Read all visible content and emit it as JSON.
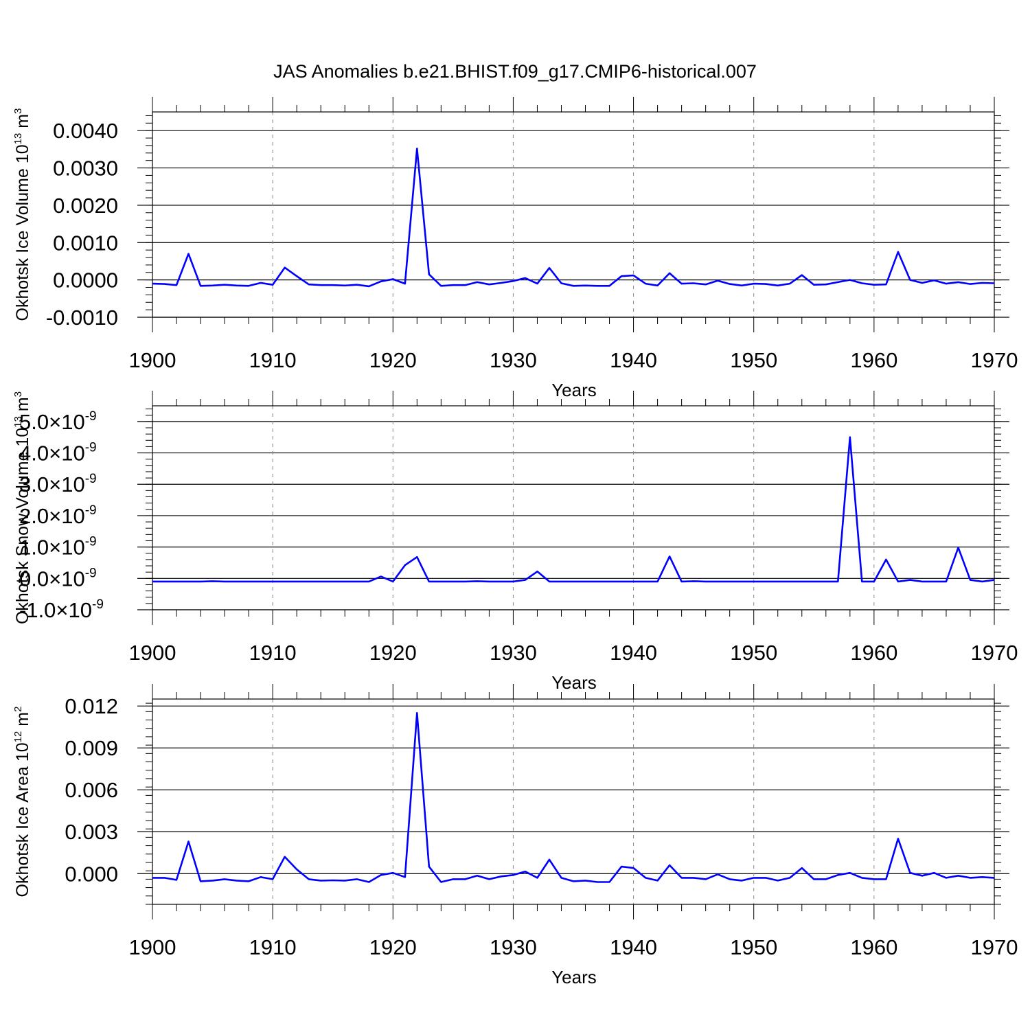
{
  "title": "JAS Anomalies b.e21.BHIST.f09_g17.CMIP6-historical.007",
  "colors": {
    "line": "#0000ff",
    "axis": "#000000",
    "grid": "#888888"
  },
  "chart_data": [
    {
      "type": "line",
      "ylabel": "Okhotsk Ice Volume 10",
      "ylabel_exp": "13",
      "ylabel_unit": " m",
      "ylabel_unit_exp": "3",
      "xlabel": "Years",
      "xlim": [
        1900,
        1970
      ],
      "ylim": [
        -0.001,
        0.0045
      ],
      "yticks": [
        -0.001,
        0,
        0.001,
        0.002,
        0.003,
        0.004
      ],
      "ytick_labels": [
        "-0.0010",
        "0.0000",
        "0.0010",
        "0.0020",
        "0.0030",
        "0.0040"
      ],
      "xticks": [
        1900,
        1910,
        1920,
        1930,
        1940,
        1950,
        1960,
        1970
      ],
      "xtick_labels": [
        "1900",
        "1910",
        "1920",
        "1930",
        "1940",
        "1950",
        "1960",
        "1970"
      ],
      "grid": "dashed vertical",
      "series": [
        {
          "values": [
            -0.0001,
            -0.00011,
            -0.00014,
            0.0007,
            -0.00016,
            -0.00015,
            -0.00013,
            -0.00015,
            -0.00016,
            -8e-05,
            -0.00013,
            0.00033,
            0.0001,
            -0.00012,
            -0.00014,
            -0.00014,
            -0.00015,
            -0.00013,
            -0.00017,
            -4e-05,
            2e-05,
            -0.0001,
            0.00352,
            0.00015,
            -0.00016,
            -0.00014,
            -0.00014,
            -6e-05,
            -0.00012,
            -8e-05,
            -3e-05,
            5e-05,
            -0.0001,
            0.00032,
            -9e-05,
            -0.00016,
            -0.00015,
            -0.00016,
            -0.00016,
            0.0001,
            0.00012,
            -0.0001,
            -0.00015,
            0.00018,
            -0.0001,
            -9e-05,
            -0.00012,
            -2e-05,
            -0.00011,
            -0.00015,
            -0.0001,
            -0.00011,
            -0.00015,
            -0.0001,
            0.00013,
            -0.00013,
            -0.00012,
            -6e-05,
            0.0,
            -9e-05,
            -0.00013,
            -0.00012,
            0.00075,
            0.0,
            -8e-05,
            -1e-05,
            -0.0001,
            -6e-05,
            -0.00011,
            -8e-05,
            -9e-05
          ]
        }
      ]
    },
    {
      "type": "line",
      "ylabel": "Okhotsk Snow Volume 10",
      "ylabel_exp": "13",
      "ylabel_unit": " m",
      "ylabel_unit_exp": "3",
      "xlabel": "Years",
      "xlim": [
        1900,
        1970
      ],
      "ylim": [
        -1e-09,
        5.5e-09
      ],
      "yticks": [
        -1e-09,
        0,
        1e-09,
        2e-09,
        3e-09,
        4e-09,
        5e-09
      ],
      "ytick_labels": [
        "-1.0×10",
        "0.0×10",
        "1.0×10",
        "2.0×10",
        "3.0×10",
        "4.0×10",
        "5.0×10"
      ],
      "ytick_exp": "-9",
      "xticks": [
        1900,
        1910,
        1920,
        1930,
        1940,
        1950,
        1960,
        1970
      ],
      "xtick_labels": [
        "1900",
        "1910",
        "1920",
        "1930",
        "1940",
        "1950",
        "1960",
        "1970"
      ],
      "grid": "dashed vertical",
      "series": [
        {
          "values": [
            -1e-10,
            -1e-10,
            -1e-10,
            -1e-10,
            -1e-10,
            -9e-11,
            -1e-10,
            -1e-10,
            -1e-10,
            -1e-10,
            -1e-10,
            -1e-10,
            -1e-10,
            -1e-10,
            -1e-10,
            -1e-10,
            -1e-10,
            -1e-10,
            -1e-10,
            6e-11,
            -1e-10,
            4.2e-10,
            6.8e-10,
            -1e-10,
            -1e-10,
            -1e-10,
            -1e-10,
            -9e-11,
            -1e-10,
            -1e-10,
            -1e-10,
            -5e-11,
            2.2e-10,
            -1e-10,
            -1e-10,
            -1e-10,
            -1e-10,
            -1e-10,
            -1e-10,
            -1e-10,
            -1e-10,
            -1e-10,
            -1e-10,
            7e-10,
            -1e-10,
            -9e-11,
            -1e-10,
            -1e-10,
            -1e-10,
            -1e-10,
            -1e-10,
            -1e-10,
            -1e-10,
            -1e-10,
            -1e-10,
            -1e-10,
            -1e-10,
            -1e-10,
            4.5e-09,
            -1e-10,
            -1e-10,
            6e-10,
            -1e-10,
            -5e-11,
            -1e-10,
            -1e-10,
            -1e-10,
            9.8e-10,
            -5e-11,
            -1e-10,
            -5e-11
          ]
        }
      ]
    },
    {
      "type": "line",
      "ylabel": "Okhotsk Ice Area 10",
      "ylabel_exp": "12",
      "ylabel_unit": " m",
      "ylabel_unit_exp": "2",
      "xlabel": "Years",
      "xlim": [
        1900,
        1970
      ],
      "ylim": [
        -0.0022,
        0.0125
      ],
      "yticks": [
        0,
        0.003,
        0.006,
        0.009,
        0.012
      ],
      "ytick_labels": [
        "0.000",
        "0.003",
        "0.006",
        "0.009",
        "0.012"
      ],
      "xticks": [
        1900,
        1910,
        1920,
        1930,
        1940,
        1950,
        1960,
        1970
      ],
      "xtick_labels": [
        "1900",
        "1910",
        "1920",
        "1930",
        "1940",
        "1950",
        "1960",
        "1970"
      ],
      "grid": "dashed vertical",
      "series": [
        {
          "values": [
            -0.0003,
            -0.0003,
            -0.00045,
            0.0023,
            -0.00055,
            -0.0005,
            -0.0004,
            -0.0005,
            -0.00055,
            -0.00025,
            -0.0004,
            0.0012,
            0.0003,
            -0.0004,
            -0.0005,
            -0.00048,
            -0.0005,
            -0.0004,
            -0.0006,
            -0.0001,
            5e-05,
            -0.00025,
            0.0115,
            0.0005,
            -0.0006,
            -0.0004,
            -0.0004,
            -0.00015,
            -0.0004,
            -0.0002,
            -0.0001,
            0.00015,
            -0.0003,
            0.001,
            -0.0003,
            -0.00055,
            -0.0005,
            -0.0006,
            -0.0006,
            0.0005,
            0.0004,
            -0.0003,
            -0.0005,
            0.0006,
            -0.0003,
            -0.0003,
            -0.0004,
            -5e-05,
            -0.0004,
            -0.0005,
            -0.0003,
            -0.0003,
            -0.0005,
            -0.0003,
            0.0004,
            -0.0004,
            -0.0004,
            -0.0001,
            5e-05,
            -0.0003,
            -0.0004,
            -0.0004,
            0.0025,
            5e-05,
            -0.00015,
            5e-05,
            -0.0003,
            -0.00015,
            -0.0003,
            -0.00025,
            -0.0003
          ]
        }
      ]
    }
  ]
}
